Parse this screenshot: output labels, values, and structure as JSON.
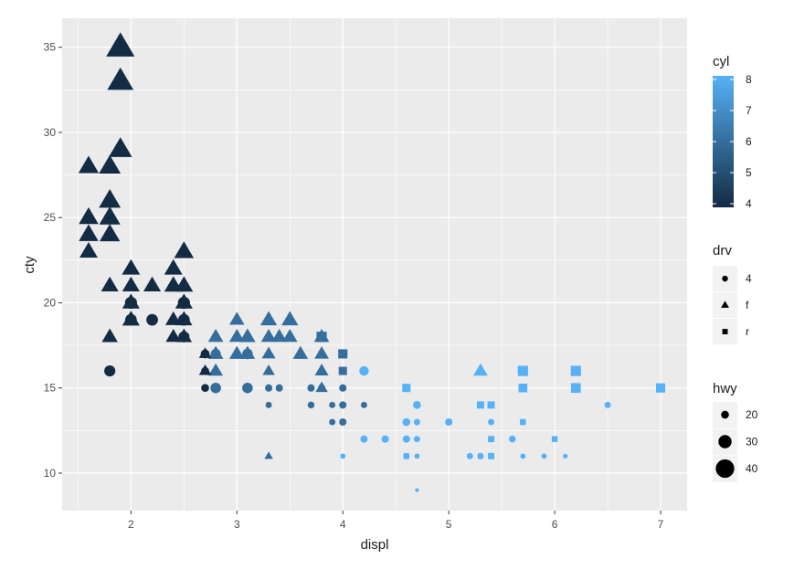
{
  "chart_data": {
    "type": "scatter",
    "title": "",
    "xlabel": "displ",
    "ylabel": "cty",
    "xlim": [
      1.35,
      7.25
    ],
    "ylim": [
      7.8,
      36.7
    ],
    "x_ticks": [
      "2",
      "3",
      "4",
      "5",
      "6",
      "7"
    ],
    "y_ticks": [
      "10",
      "15",
      "20",
      "25",
      "30",
      "35"
    ],
    "grid": true,
    "legends": {
      "cyl": {
        "title": "cyl",
        "labels": [
          "8",
          "7",
          "6",
          "5",
          "4"
        ],
        "colors": [
          "#56B1F7",
          "#132B43"
        ],
        "range": [
          4,
          8
        ]
      },
      "drv": {
        "title": "drv",
        "labels": [
          "4",
          "f",
          "r"
        ],
        "shapes": [
          "circle",
          "triangle",
          "square"
        ]
      },
      "hwy": {
        "title": "hwy",
        "labels": [
          "20",
          "30",
          "40"
        ]
      }
    },
    "points": [
      {
        "x": 1.9,
        "y": 35,
        "hwy": 44,
        "cyl": 4,
        "drv": "f"
      },
      {
        "x": 1.9,
        "y": 33,
        "hwy": 41,
        "cyl": 4,
        "drv": "f"
      },
      {
        "x": 1.9,
        "y": 29,
        "hwy": 37,
        "cyl": 4,
        "drv": "f"
      },
      {
        "x": 1.6,
        "y": 28,
        "hwy": 33,
        "cyl": 4,
        "drv": "f"
      },
      {
        "x": 1.8,
        "y": 28,
        "hwy": 35,
        "cyl": 4,
        "drv": "f"
      },
      {
        "x": 1.8,
        "y": 26,
        "hwy": 35,
        "cyl": 4,
        "drv": "f"
      },
      {
        "x": 1.6,
        "y": 25,
        "hwy": 32,
        "cyl": 4,
        "drv": "f"
      },
      {
        "x": 1.8,
        "y": 25,
        "hwy": 34,
        "cyl": 4,
        "drv": "f"
      },
      {
        "x": 1.6,
        "y": 24,
        "hwy": 32,
        "cyl": 4,
        "drv": "f"
      },
      {
        "x": 1.8,
        "y": 24,
        "hwy": 33,
        "cyl": 4,
        "drv": "f"
      },
      {
        "x": 1.6,
        "y": 23,
        "hwy": 30,
        "cyl": 4,
        "drv": "f"
      },
      {
        "x": 2.5,
        "y": 23,
        "hwy": 32,
        "cyl": 4,
        "drv": "f"
      },
      {
        "x": 2.0,
        "y": 22,
        "hwy": 30,
        "cyl": 4,
        "drv": "f"
      },
      {
        "x": 2.4,
        "y": 22,
        "hwy": 30,
        "cyl": 4,
        "drv": "f"
      },
      {
        "x": 1.8,
        "y": 21,
        "hwy": 29,
        "cyl": 4,
        "drv": "f"
      },
      {
        "x": 2.0,
        "y": 21,
        "hwy": 29,
        "cyl": 4,
        "drv": "f"
      },
      {
        "x": 2.2,
        "y": 21,
        "hwy": 29,
        "cyl": 4,
        "drv": "f"
      },
      {
        "x": 2.4,
        "y": 21,
        "hwy": 30,
        "cyl": 4,
        "drv": "f"
      },
      {
        "x": 2.5,
        "y": 21,
        "hwy": 30,
        "cyl": 4,
        "drv": "f"
      },
      {
        "x": 2.0,
        "y": 20,
        "hwy": 29,
        "cyl": 4,
        "drv": "f"
      },
      {
        "x": 2.5,
        "y": 20,
        "hwy": 29,
        "cyl": 4,
        "drv": "f"
      },
      {
        "x": 2.0,
        "y": 19,
        "hwy": 29,
        "cyl": 4,
        "drv": "f"
      },
      {
        "x": 2.4,
        "y": 19,
        "hwy": 27,
        "cyl": 4,
        "drv": "f"
      },
      {
        "x": 2.5,
        "y": 19,
        "hwy": 28,
        "cyl": 4,
        "drv": "f"
      },
      {
        "x": 1.8,
        "y": 18,
        "hwy": 27,
        "cyl": 4,
        "drv": "f"
      },
      {
        "x": 2.4,
        "y": 18,
        "hwy": 26,
        "cyl": 4,
        "drv": "f"
      },
      {
        "x": 2.5,
        "y": 18,
        "hwy": 27,
        "cyl": 4,
        "drv": "f"
      },
      {
        "x": 2.0,
        "y": 20,
        "hwy": 28,
        "cyl": 4,
        "drv": "4"
      },
      {
        "x": 2.0,
        "y": 19,
        "hwy": 27,
        "cyl": 4,
        "drv": "4"
      },
      {
        "x": 2.2,
        "y": 19,
        "hwy": 27,
        "cyl": 4,
        "drv": "4"
      },
      {
        "x": 2.5,
        "y": 19,
        "hwy": 27,
        "cyl": 4,
        "drv": "4"
      },
      {
        "x": 2.5,
        "y": 20,
        "hwy": 28,
        "cyl": 4,
        "drv": "4"
      },
      {
        "x": 2.5,
        "y": 18,
        "hwy": 26,
        "cyl": 4,
        "drv": "4"
      },
      {
        "x": 1.8,
        "y": 16,
        "hwy": 26,
        "cyl": 4,
        "drv": "4"
      },
      {
        "x": 2.7,
        "y": 17,
        "hwy": 22,
        "cyl": 4,
        "drv": "4"
      },
      {
        "x": 2.7,
        "y": 16,
        "hwy": 20,
        "cyl": 4,
        "drv": "4"
      },
      {
        "x": 2.7,
        "y": 15,
        "hwy": 20,
        "cyl": 4,
        "drv": "4"
      },
      {
        "x": 2.7,
        "y": 17,
        "hwy": 22,
        "cyl": 4,
        "drv": "f"
      },
      {
        "x": 2.7,
        "y": 16,
        "hwy": 22,
        "cyl": 4,
        "drv": "f"
      },
      {
        "x": 2.8,
        "y": 18,
        "hwy": 26,
        "cyl": 6,
        "drv": "f"
      },
      {
        "x": 2.8,
        "y": 17,
        "hwy": 26,
        "cyl": 6,
        "drv": "f"
      },
      {
        "x": 2.8,
        "y": 16,
        "hwy": 25,
        "cyl": 6,
        "drv": "f"
      },
      {
        "x": 3.0,
        "y": 19,
        "hwy": 26,
        "cyl": 6,
        "drv": "f"
      },
      {
        "x": 3.0,
        "y": 18,
        "hwy": 26,
        "cyl": 6,
        "drv": "f"
      },
      {
        "x": 3.0,
        "y": 17,
        "hwy": 26,
        "cyl": 6,
        "drv": "f"
      },
      {
        "x": 3.1,
        "y": 18,
        "hwy": 27,
        "cyl": 6,
        "drv": "f"
      },
      {
        "x": 3.1,
        "y": 17,
        "hwy": 26,
        "cyl": 6,
        "drv": "f"
      },
      {
        "x": 3.3,
        "y": 19,
        "hwy": 28,
        "cyl": 6,
        "drv": "f"
      },
      {
        "x": 3.3,
        "y": 18,
        "hwy": 26,
        "cyl": 6,
        "drv": "f"
      },
      {
        "x": 3.3,
        "y": 17,
        "hwy": 24,
        "cyl": 6,
        "drv": "f"
      },
      {
        "x": 3.3,
        "y": 16,
        "hwy": 22,
        "cyl": 6,
        "drv": "f"
      },
      {
        "x": 3.3,
        "y": 11,
        "hwy": 17,
        "cyl": 6,
        "drv": "f"
      },
      {
        "x": 3.4,
        "y": 18,
        "hwy": 26,
        "cyl": 6,
        "drv": "f"
      },
      {
        "x": 3.5,
        "y": 19,
        "hwy": 28,
        "cyl": 6,
        "drv": "f"
      },
      {
        "x": 3.5,
        "y": 18,
        "hwy": 26,
        "cyl": 6,
        "drv": "f"
      },
      {
        "x": 3.6,
        "y": 17,
        "hwy": 26,
        "cyl": 6,
        "drv": "f"
      },
      {
        "x": 3.8,
        "y": 18,
        "hwy": 26,
        "cyl": 6,
        "drv": "f"
      },
      {
        "x": 3.8,
        "y": 17,
        "hwy": 25,
        "cyl": 6,
        "drv": "f"
      },
      {
        "x": 3.8,
        "y": 16,
        "hwy": 24,
        "cyl": 6,
        "drv": "f"
      },
      {
        "x": 3.8,
        "y": 15,
        "hwy": 22,
        "cyl": 6,
        "drv": "f"
      },
      {
        "x": 2.8,
        "y": 17,
        "hwy": 24,
        "cyl": 6,
        "drv": "4"
      },
      {
        "x": 2.8,
        "y": 15,
        "hwy": 25,
        "cyl": 6,
        "drv": "4"
      },
      {
        "x": 3.1,
        "y": 17,
        "hwy": 25,
        "cyl": 6,
        "drv": "4"
      },
      {
        "x": 3.1,
        "y": 15,
        "hwy": 25,
        "cyl": 6,
        "drv": "4"
      },
      {
        "x": 3.3,
        "y": 15,
        "hwy": 19,
        "cyl": 6,
        "drv": "4"
      },
      {
        "x": 3.4,
        "y": 15,
        "hwy": 19,
        "cyl": 6,
        "drv": "4"
      },
      {
        "x": 3.3,
        "y": 14,
        "hwy": 17,
        "cyl": 6,
        "drv": "4"
      },
      {
        "x": 3.7,
        "y": 15,
        "hwy": 19,
        "cyl": 6,
        "drv": "4"
      },
      {
        "x": 3.7,
        "y": 14,
        "hwy": 18,
        "cyl": 6,
        "drv": "4"
      },
      {
        "x": 3.8,
        "y": 15,
        "hwy": 19,
        "cyl": 6,
        "drv": "4"
      },
      {
        "x": 3.9,
        "y": 14,
        "hwy": 17,
        "cyl": 6,
        "drv": "4"
      },
      {
        "x": 3.9,
        "y": 13,
        "hwy": 17,
        "cyl": 6,
        "drv": "4"
      },
      {
        "x": 4.0,
        "y": 15,
        "hwy": 19,
        "cyl": 6,
        "drv": "4"
      },
      {
        "x": 4.0,
        "y": 14,
        "hwy": 19,
        "cyl": 6,
        "drv": "4"
      },
      {
        "x": 4.0,
        "y": 13,
        "hwy": 19,
        "cyl": 6,
        "drv": "4"
      },
      {
        "x": 4.0,
        "y": 16,
        "hwy": 20,
        "cyl": 6,
        "drv": "4"
      },
      {
        "x": 4.2,
        "y": 14,
        "hwy": 17,
        "cyl": 6,
        "drv": "4"
      },
      {
        "x": 3.8,
        "y": 18,
        "hwy": 26,
        "cyl": 6,
        "drv": "r"
      },
      {
        "x": 4.0,
        "y": 17,
        "hwy": 24,
        "cyl": 6,
        "drv": "r"
      },
      {
        "x": 4.0,
        "y": 16,
        "hwy": 22,
        "cyl": 6,
        "drv": "r"
      },
      {
        "x": 4.2,
        "y": 16,
        "hwy": 23,
        "cyl": 8,
        "drv": "4"
      },
      {
        "x": 4.2,
        "y": 12,
        "hwy": 19,
        "cyl": 8,
        "drv": "4"
      },
      {
        "x": 4.0,
        "y": 11,
        "hwy": 15,
        "cyl": 8,
        "drv": "4"
      },
      {
        "x": 4.4,
        "y": 12,
        "hwy": 19,
        "cyl": 8,
        "drv": "4"
      },
      {
        "x": 4.6,
        "y": 13,
        "hwy": 20,
        "cyl": 8,
        "drv": "4"
      },
      {
        "x": 4.6,
        "y": 12,
        "hwy": 19,
        "cyl": 8,
        "drv": "4"
      },
      {
        "x": 4.6,
        "y": 11,
        "hwy": 17,
        "cyl": 8,
        "drv": "4"
      },
      {
        "x": 4.7,
        "y": 14,
        "hwy": 20,
        "cyl": 8,
        "drv": "4"
      },
      {
        "x": 4.7,
        "y": 13,
        "hwy": 17,
        "cyl": 8,
        "drv": "4"
      },
      {
        "x": 4.7,
        "y": 12,
        "hwy": 17,
        "cyl": 8,
        "drv": "4"
      },
      {
        "x": 4.7,
        "y": 11,
        "hwy": 15,
        "cyl": 8,
        "drv": "4"
      },
      {
        "x": 4.7,
        "y": 9,
        "hwy": 12,
        "cyl": 8,
        "drv": "4"
      },
      {
        "x": 5.0,
        "y": 13,
        "hwy": 19,
        "cyl": 8,
        "drv": "4"
      },
      {
        "x": 5.2,
        "y": 11,
        "hwy": 17,
        "cyl": 8,
        "drv": "4"
      },
      {
        "x": 5.3,
        "y": 11,
        "hwy": 17,
        "cyl": 8,
        "drv": "4"
      },
      {
        "x": 5.4,
        "y": 13,
        "hwy": 17,
        "cyl": 8,
        "drv": "4"
      },
      {
        "x": 5.6,
        "y": 12,
        "hwy": 18,
        "cyl": 8,
        "drv": "4"
      },
      {
        "x": 5.7,
        "y": 13,
        "hwy": 17,
        "cyl": 8,
        "drv": "4"
      },
      {
        "x": 5.7,
        "y": 11,
        "hwy": 15,
        "cyl": 8,
        "drv": "4"
      },
      {
        "x": 5.9,
        "y": 11,
        "hwy": 15,
        "cyl": 8,
        "drv": "4"
      },
      {
        "x": 6.1,
        "y": 11,
        "hwy": 14,
        "cyl": 8,
        "drv": "4"
      },
      {
        "x": 6.5,
        "y": 14,
        "hwy": 17,
        "cyl": 8,
        "drv": "4"
      },
      {
        "x": 4.6,
        "y": 15,
        "hwy": 22,
        "cyl": 8,
        "drv": "r"
      },
      {
        "x": 4.6,
        "y": 11,
        "hwy": 17,
        "cyl": 8,
        "drv": "r"
      },
      {
        "x": 5.3,
        "y": 14,
        "hwy": 20,
        "cyl": 8,
        "drv": "r"
      },
      {
        "x": 5.4,
        "y": 14,
        "hwy": 20,
        "cyl": 8,
        "drv": "r"
      },
      {
        "x": 5.3,
        "y": 11,
        "hwy": 16,
        "cyl": 8,
        "drv": "r"
      },
      {
        "x": 5.4,
        "y": 11,
        "hwy": 18,
        "cyl": 8,
        "drv": "r"
      },
      {
        "x": 5.4,
        "y": 12,
        "hwy": 18,
        "cyl": 8,
        "drv": "r"
      },
      {
        "x": 5.7,
        "y": 16,
        "hwy": 26,
        "cyl": 8,
        "drv": "r"
      },
      {
        "x": 5.7,
        "y": 15,
        "hwy": 23,
        "cyl": 8,
        "drv": "r"
      },
      {
        "x": 5.7,
        "y": 13,
        "hwy": 17,
        "cyl": 8,
        "drv": "r"
      },
      {
        "x": 6.0,
        "y": 12,
        "hwy": 17,
        "cyl": 8,
        "drv": "r"
      },
      {
        "x": 6.2,
        "y": 16,
        "hwy": 26,
        "cyl": 8,
        "drv": "r"
      },
      {
        "x": 6.2,
        "y": 15,
        "hwy": 25,
        "cyl": 8,
        "drv": "r"
      },
      {
        "x": 7.0,
        "y": 15,
        "hwy": 24,
        "cyl": 8,
        "drv": "r"
      },
      {
        "x": 5.3,
        "y": 16,
        "hwy": 25,
        "cyl": 8,
        "drv": "f"
      }
    ]
  }
}
